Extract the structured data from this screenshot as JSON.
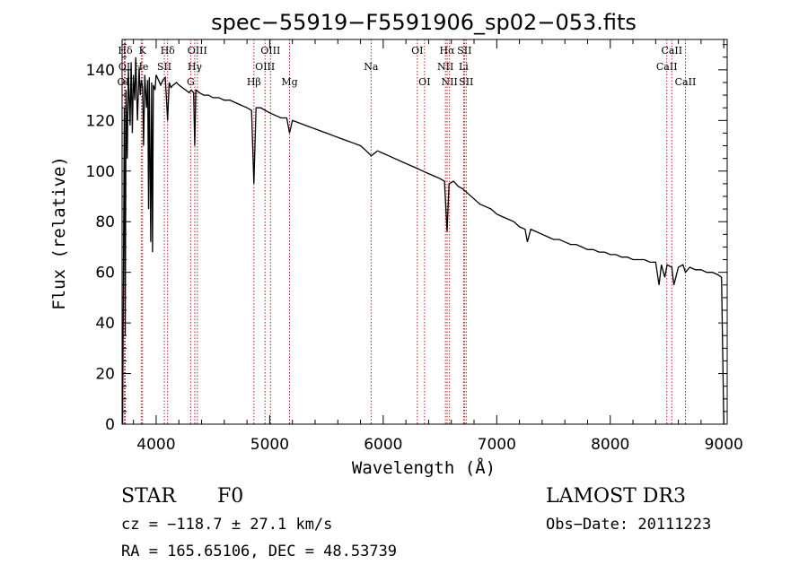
{
  "chart_data": {
    "type": "line",
    "title": "spec−55919−F5591906_sp02−053.fits",
    "xlabel": "Wavelength (Å)",
    "ylabel": "Flux (relative)",
    "xlim": [
      3700,
      9030
    ],
    "ylim": [
      0,
      152
    ],
    "xticks": [
      4000,
      5000,
      6000,
      7000,
      8000,
      9000
    ],
    "yticks": [
      0,
      20,
      40,
      60,
      80,
      100,
      120,
      140
    ],
    "line_color": "#000000",
    "marker_color": "#b22222",
    "series": [
      {
        "name": "flux",
        "x": [
          3705,
          3712,
          3720,
          3728,
          3735,
          3745,
          3755,
          3770,
          3780,
          3790,
          3800,
          3812,
          3820,
          3835,
          3850,
          3860,
          3870,
          3880,
          3889,
          3900,
          3915,
          3925,
          3933,
          3940,
          3952,
          3960,
          3968,
          3975,
          3990,
          4000,
          4020,
          4040,
          4060,
          4080,
          4101,
          4115,
          4130,
          4150,
          4180,
          4200,
          4230,
          4260,
          4290,
          4310,
          4330,
          4340,
          4350,
          4380,
          4420,
          4460,
          4500,
          4550,
          4600,
          4650,
          4700,
          4750,
          4800,
          4840,
          4861,
          4880,
          4920,
          4960,
          5000,
          5050,
          5100,
          5150,
          5175,
          5200,
          5260,
          5320,
          5380,
          5440,
          5500,
          5560,
          5620,
          5680,
          5740,
          5800,
          5850,
          5895,
          5950,
          6000,
          6050,
          6100,
          6150,
          6200,
          6250,
          6300,
          6350,
          6400,
          6450,
          6500,
          6540,
          6563,
          6580,
          6620,
          6660,
          6700,
          6750,
          6800,
          6850,
          6900,
          6950,
          7000,
          7050,
          7100,
          7150,
          7200,
          7250,
          7270,
          7300,
          7350,
          7400,
          7450,
          7500,
          7550,
          7600,
          7650,
          7700,
          7750,
          7800,
          7850,
          7900,
          7950,
          8000,
          8050,
          8100,
          8150,
          8200,
          8250,
          8300,
          8350,
          8400,
          8430,
          8450,
          8480,
          8500,
          8542,
          8560,
          8600,
          8640,
          8662,
          8700,
          8750,
          8800,
          8850,
          8900,
          8950,
          8980,
          9000
        ],
        "y": [
          0,
          58,
          125,
          35,
          132,
          105,
          140,
          118,
          143,
          115,
          138,
          128,
          145,
          120,
          141,
          130,
          136,
          133,
          110,
          138,
          125,
          136,
          85,
          137,
          72,
          135,
          68,
          134,
          132,
          138,
          136,
          134,
          136,
          137,
          120,
          135,
          133,
          134,
          135,
          134,
          133,
          132,
          131,
          132,
          131,
          110,
          132,
          131,
          130,
          130,
          129,
          129,
          128,
          128,
          127,
          126,
          125,
          124,
          95,
          125,
          125,
          124,
          123,
          122,
          121,
          121,
          115,
          120,
          119,
          118,
          117,
          116,
          115,
          114,
          113,
          112,
          111,
          110,
          108,
          106,
          108,
          107,
          106,
          105,
          104,
          103,
          102,
          101,
          100,
          99,
          98,
          97,
          96,
          76,
          95,
          96,
          94,
          93,
          91,
          89,
          87,
          86,
          85,
          83,
          82,
          81,
          80,
          78,
          77,
          72,
          77,
          76,
          75,
          74,
          73,
          73,
          72,
          71,
          71,
          70,
          69,
          69,
          68,
          68,
          67,
          67,
          66,
          66,
          65,
          65,
          65,
          64,
          64,
          55,
          63,
          58,
          63,
          62,
          55,
          62,
          63,
          60,
          62,
          61,
          61,
          60,
          60,
          59,
          58,
          0
        ]
      }
    ],
    "line_markers": [
      {
        "label": "Hδ",
        "wavelength": 3728,
        "row": 0
      },
      {
        "label": "K",
        "wavelength": 3880,
        "row": 0
      },
      {
        "label": "Hδ",
        "wavelength": 4101,
        "row": 0
      },
      {
        "label": "OIII",
        "wavelength": 4363,
        "row": 0
      },
      {
        "label": "OIII",
        "wavelength": 5007,
        "row": 0
      },
      {
        "label": "OI",
        "wavelength": 6300,
        "row": 0
      },
      {
        "label": "Hα",
        "wavelength": 6563,
        "row": 0
      },
      {
        "label": "SII",
        "wavelength": 6716,
        "row": 0
      },
      {
        "label": "CaII",
        "wavelength": 8542,
        "row": 0
      },
      {
        "label": "OI",
        "wavelength": 3720,
        "row": 1
      },
      {
        "label": "He",
        "wavelength": 3869,
        "row": 1
      },
      {
        "label": "SII",
        "wavelength": 4072,
        "row": 1
      },
      {
        "label": "Hγ",
        "wavelength": 4340,
        "row": 1
      },
      {
        "label": "OIII",
        "wavelength": 4959,
        "row": 1
      },
      {
        "label": "Na",
        "wavelength": 5893,
        "row": 1
      },
      {
        "label": "NII",
        "wavelength": 6548,
        "row": 1
      },
      {
        "label": "Li",
        "wavelength": 6708,
        "row": 1
      },
      {
        "label": "CaII",
        "wavelength": 8498,
        "row": 1
      },
      {
        "label": "OII",
        "wavelength": 3727,
        "row": 2
      },
      {
        "label": "G",
        "wavelength": 4304,
        "row": 2
      },
      {
        "label": "Hβ",
        "wavelength": 4861,
        "row": 2
      },
      {
        "label": "Mg",
        "wavelength": 5175,
        "row": 2
      },
      {
        "label": "OI",
        "wavelength": 6364,
        "row": 2
      },
      {
        "label": "NII",
        "wavelength": 6584,
        "row": 2
      },
      {
        "label": "SII",
        "wavelength": 6731,
        "row": 2
      },
      {
        "label": "CaII",
        "wavelength": 8662,
        "row": 2
      }
    ]
  },
  "info": {
    "class_label": "STAR",
    "subclass": "F0",
    "survey": "LAMOST DR3",
    "cz_line": "cz = −118.7 ± 27.1 km/s",
    "obs_date_line": "Obs−Date: 20111223",
    "radec_line": "RA = 165.65106, DEC =  48.53739"
  }
}
